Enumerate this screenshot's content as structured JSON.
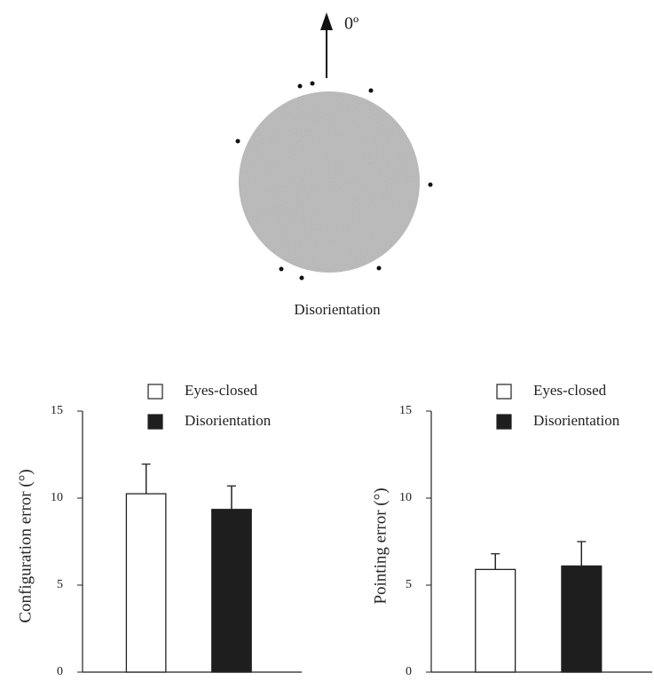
{
  "diagram": {
    "direction_label": "0º",
    "caption": "Disorientation"
  },
  "chart_data": [
    {
      "type": "bar",
      "y_label": "Configuration error (°)",
      "ylim": [
        0,
        15
      ],
      "yticks": [
        0,
        5,
        10,
        15
      ],
      "legend": "top",
      "series": [
        {
          "name": "Eyes-closed",
          "color": "#ffffff",
          "values": [
            10.25
          ],
          "errors": [
            1.7
          ]
        },
        {
          "name": "Disorientation",
          "color": "#1e1e1e",
          "values": [
            9.35
          ],
          "errors": [
            1.35
          ]
        }
      ]
    },
    {
      "type": "bar",
      "y_label": "Pointing error (°)",
      "ylim": [
        0,
        15
      ],
      "yticks": [
        0,
        5,
        10,
        15
      ],
      "legend": "top",
      "series": [
        {
          "name": "Eyes-closed",
          "color": "#ffffff",
          "values": [
            5.9
          ],
          "errors": [
            0.9
          ]
        },
        {
          "name": "Disorientation",
          "color": "#1e1e1e",
          "values": [
            6.1
          ],
          "errors": [
            1.4
          ]
        }
      ]
    }
  ]
}
